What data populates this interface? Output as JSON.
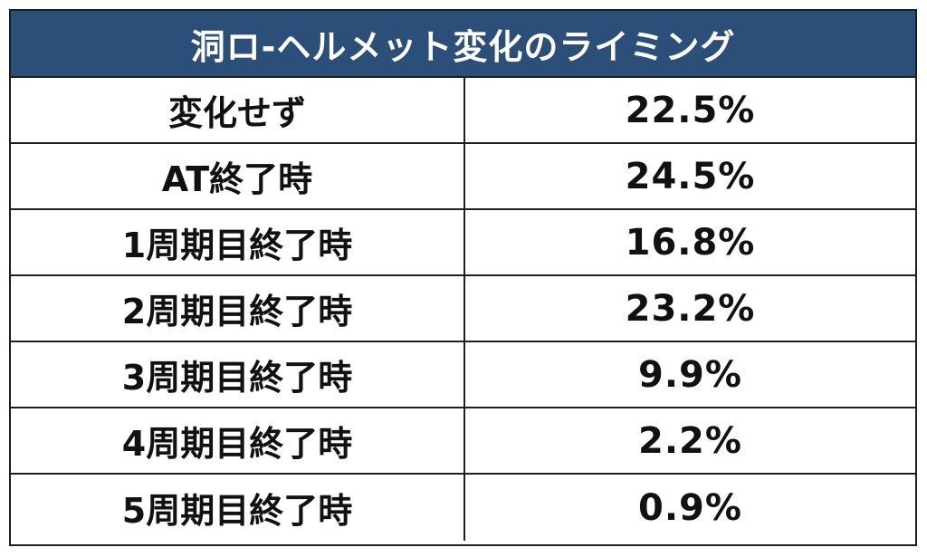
{
  "table": {
    "title": "洞ロ-ヘルメット変化のライミング",
    "header_color": "#2c4f79",
    "rows": [
      {
        "label": "変化せず",
        "value": "22.5%"
      },
      {
        "label": "AT終了時",
        "value": "24.5%"
      },
      {
        "label": "1周期目終了時",
        "value": "16.8%"
      },
      {
        "label": "2周期目終了時",
        "value": "23.2%"
      },
      {
        "label": "3周期目終了時",
        "value": "9.9%"
      },
      {
        "label": "4周期目終了時",
        "value": "2.2%"
      },
      {
        "label": "5周期目終了時",
        "value": "0.9%"
      }
    ]
  }
}
